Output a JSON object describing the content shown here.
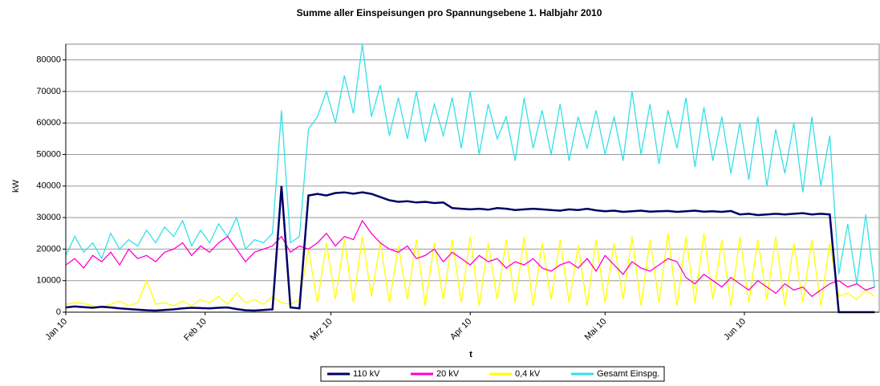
{
  "chart_data": {
    "type": "line",
    "title": "Summe aller Einspeisungen pro Spannungsebene 1. Halbjahr 2010",
    "xlabel": "t",
    "ylabel": "kW",
    "x": [
      0,
      2,
      4,
      6,
      8,
      10,
      12,
      14,
      16,
      18,
      20,
      22,
      24,
      26,
      28,
      30,
      32,
      34,
      36,
      38,
      40,
      42,
      44,
      46,
      48,
      50,
      52,
      54,
      56,
      58,
      60,
      62,
      64,
      66,
      68,
      70,
      72,
      74,
      76,
      78,
      80,
      82,
      84,
      86,
      88,
      90,
      92,
      94,
      96,
      98,
      100,
      102,
      104,
      106,
      108,
      110,
      112,
      114,
      116,
      118,
      120,
      122,
      124,
      126,
      128,
      130,
      132,
      134,
      136,
      138,
      140,
      142,
      144,
      146,
      148,
      150,
      152,
      154,
      156,
      158,
      160,
      162,
      164,
      166,
      168,
      170,
      172,
      174,
      176,
      178,
      180
    ],
    "xlim": [
      0,
      181
    ],
    "xticks": [
      {
        "value": 0,
        "label": "Jan 10"
      },
      {
        "value": 31,
        "label": "Feb 10"
      },
      {
        "value": 59,
        "label": "Mrz 10"
      },
      {
        "value": 90,
        "label": "Apr 10"
      },
      {
        "value": 120,
        "label": "Mai 10"
      },
      {
        "value": 151,
        "label": "Jun 10"
      }
    ],
    "ylim": [
      0,
      85000
    ],
    "yticks": [
      0,
      10000,
      20000,
      30000,
      40000,
      50000,
      60000,
      70000,
      80000
    ],
    "grid": true,
    "legend": "bottom",
    "series": [
      {
        "name": "110 kV",
        "color": "#000066",
        "values": [
          1500,
          1800,
          1600,
          1400,
          1700,
          1500,
          1200,
          1000,
          800,
          600,
          500,
          700,
          900,
          1200,
          1400,
          1300,
          1200,
          1400,
          1500,
          1000,
          600,
          500,
          700,
          900,
          40000,
          1500,
          1200,
          37000,
          37500,
          37000,
          37800,
          38000,
          37600,
          38000,
          37500,
          36500,
          35500,
          35000,
          35200,
          34800,
          35000,
          34600,
          34800,
          33000,
          32800,
          32600,
          32800,
          32500,
          33000,
          32800,
          32400,
          32600,
          32800,
          32600,
          32400,
          32200,
          32600,
          32400,
          32800,
          32300,
          32000,
          32200,
          31800,
          32000,
          32200,
          31900,
          32000,
          32100,
          31800,
          32000,
          32200,
          31900,
          32000,
          31800,
          32100,
          31000,
          31200,
          30800,
          31000,
          31200,
          31000,
          31200,
          31400,
          31000,
          31200,
          31000,
          0,
          0,
          0,
          0,
          0
        ]
      },
      {
        "name": "20 kV",
        "color": "#ff00cc",
        "values": [
          15000,
          17000,
          14000,
          18000,
          16000,
          19000,
          15000,
          20000,
          17000,
          18000,
          16000,
          19000,
          20000,
          22000,
          18000,
          21000,
          19000,
          22000,
          24000,
          20000,
          16000,
          19000,
          20000,
          21000,
          24000,
          19000,
          21000,
          20000,
          22000,
          25000,
          21000,
          24000,
          23000,
          29000,
          25000,
          22000,
          20000,
          19000,
          21000,
          17000,
          18000,
          20000,
          16000,
          19000,
          17000,
          15000,
          18000,
          16000,
          17000,
          14000,
          16000,
          15000,
          17000,
          14000,
          13000,
          15000,
          16000,
          14000,
          17000,
          13000,
          18000,
          15000,
          12000,
          16000,
          14000,
          13000,
          15000,
          17000,
          16000,
          11000,
          9000,
          12000,
          10000,
          8000,
          11000,
          9000,
          7000,
          10000,
          8000,
          6000,
          9000,
          7000,
          8000,
          5000,
          7000,
          9000,
          10000,
          8000,
          9000,
          7000,
          8000
        ]
      },
      {
        "name": "0,4 kV",
        "color": "#ffff00",
        "values": [
          2500,
          3000,
          2800,
          2000,
          1500,
          2500,
          3500,
          2000,
          3000,
          10000,
          2500,
          3000,
          2000,
          3500,
          2000,
          4000,
          3000,
          5000,
          2500,
          6000,
          3000,
          4000,
          2500,
          5000,
          3000,
          2500,
          4000,
          20000,
          3000,
          22000,
          4000,
          23000,
          3000,
          24000,
          5000,
          22000,
          3000,
          21000,
          4000,
          23000,
          2000,
          22000,
          4000,
          23000,
          3000,
          24000,
          2000,
          22000,
          4000,
          23000,
          3000,
          24000,
          2000,
          22000,
          4000,
          23000,
          3000,
          21000,
          2000,
          23000,
          3000,
          22000,
          4000,
          24000,
          2000,
          23000,
          3000,
          25000,
          2000,
          24000,
          3000,
          25000,
          4000,
          23000,
          2000,
          24000,
          3000,
          23000,
          4000,
          24000,
          2000,
          22000,
          3000,
          23000,
          2000,
          22000,
          5000,
          6000,
          4000,
          7000,
          5000
        ]
      },
      {
        "name": "Gesamt Einspg.",
        "color": "#33e0e8",
        "values": [
          18000,
          24000,
          19000,
          22000,
          17000,
          25000,
          20000,
          23000,
          21000,
          26000,
          22000,
          27000,
          24000,
          29000,
          21000,
          26000,
          22000,
          28000,
          24000,
          30000,
          20000,
          23000,
          22000,
          25000,
          64000,
          22000,
          24000,
          58000,
          62000,
          70000,
          60000,
          75000,
          63000,
          85000,
          62000,
          72000,
          56000,
          68000,
          55000,
          70000,
          54000,
          66000,
          56000,
          68000,
          52000,
          70000,
          50000,
          66000,
          55000,
          62000,
          48000,
          68000,
          52000,
          64000,
          50000,
          66000,
          48000,
          62000,
          52000,
          64000,
          50000,
          62000,
          48000,
          70000,
          50000,
          66000,
          47000,
          64000,
          52000,
          68000,
          46000,
          65000,
          48000,
          62000,
          44000,
          60000,
          42000,
          62000,
          40000,
          58000,
          44000,
          60000,
          38000,
          62000,
          40000,
          56000,
          12000,
          28000,
          9000,
          31000,
          8000
        ]
      }
    ]
  }
}
